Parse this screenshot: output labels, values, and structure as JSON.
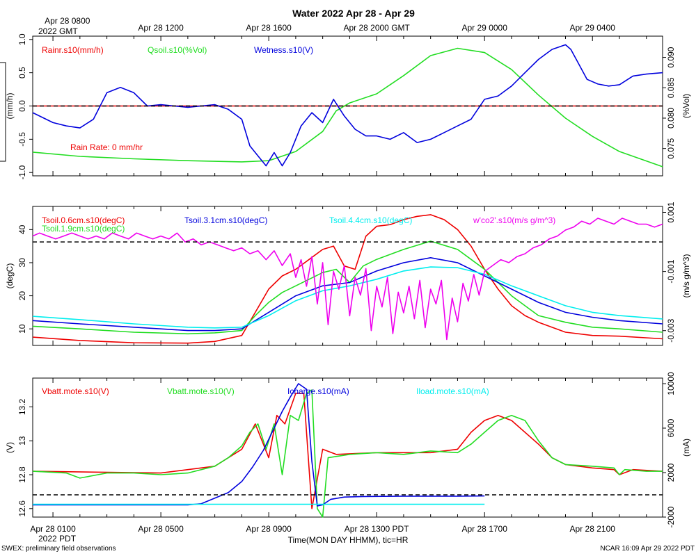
{
  "page": {
    "title": "Water 2022 Apr 28 - Apr 29",
    "top_time_labels": [
      "Apr 28 0800",
      "Apr 28 1200",
      "Apr 28 1600",
      "Apr 28 2000 GMT",
      "Apr 29 0000",
      "Apr 29 0400"
    ],
    "top_time_sublabel": "2022 GMT",
    "bottom_time_labels": [
      "Apr 28 0100",
      "Apr 28 0500",
      "Apr 28 0900",
      "Apr 28 1300 PDT",
      "Apr 28 1700",
      "Apr 28 2100"
    ],
    "bottom_time_sublabel": "2022 PDT",
    "xlabel": "Time(MON DAY HHMM), tic=HR",
    "footer_left": "SWEX: preliminary field observations",
    "footer_right": "NCAR 16:09 Apr 29 2022 PDT",
    "rain_annotation": "Rain Rate: 0 mm/hr"
  },
  "colors": {
    "red": "#ee0000",
    "green": "#22dd22",
    "blue": "#0000dd",
    "cyan": "#00eeee",
    "magenta": "#ee00ee",
    "axis": "#000000"
  },
  "chart_data": [
    {
      "type": "line",
      "title": "Water 2022 Apr 28 - Apr 29",
      "x_range_hours_pdt": [
        0.25,
        23.6
      ],
      "left_axis": {
        "label": "(mm/h)",
        "ylim": [
          -1.05,
          1.05
        ],
        "ticks": [
          -1.0,
          -0.5,
          0.0,
          0.5,
          1.0
        ]
      },
      "right_axis": {
        "label": "(%Vol)",
        "ylim": [
          0.0705,
          0.0935
        ],
        "ticks": [
          0.075,
          0.08,
          0.085,
          0.09
        ]
      },
      "legend": [
        "Rainr.s10(mm/h)",
        "Qsoil.s10(%Vol)",
        "Wetness.s10(V)"
      ],
      "reference_line": 0.0,
      "series": [
        {
          "name": "Rainr.s10(mm/h)",
          "color": "red",
          "axis": "left",
          "x": [
            0.25,
            23.6
          ],
          "y": [
            0,
            0
          ]
        },
        {
          "name": "Qsoil.s10(%Vol)",
          "color": "green",
          "axis": "right",
          "x": [
            0.25,
            2,
            4,
            6,
            8,
            9,
            10,
            11,
            11.5,
            12,
            13,
            14,
            15,
            16,
            17,
            18,
            19,
            20,
            21,
            22,
            23.6
          ],
          "y": [
            0.0744,
            0.0737,
            0.0733,
            0.073,
            0.0728,
            0.073,
            0.0745,
            0.0778,
            0.0812,
            0.0825,
            0.084,
            0.087,
            0.0903,
            0.0915,
            0.0908,
            0.088,
            0.0838,
            0.08,
            0.077,
            0.0745,
            0.072
          ]
        },
        {
          "name": "Wetness.s10(V)",
          "color": "blue",
          "axis": "left",
          "x": [
            0.25,
            1,
            1.5,
            2,
            2.5,
            3,
            3.5,
            4,
            4.5,
            5,
            5.5,
            6,
            6.5,
            7,
            7.5,
            8,
            8.3,
            8.6,
            8.9,
            9.2,
            9.5,
            9.8,
            10.2,
            10.6,
            11,
            11.4,
            11.8,
            12.2,
            12.6,
            13,
            13.5,
            14,
            14.5,
            15,
            15.5,
            16,
            16.5,
            17,
            17.5,
            18,
            18.5,
            19,
            19.5,
            20,
            20.2,
            20.4,
            20.8,
            21.2,
            21.6,
            22,
            22.5,
            23,
            23.6
          ],
          "y": [
            -0.1,
            -0.25,
            -0.3,
            -0.33,
            -0.2,
            0.2,
            0.28,
            0.2,
            0.0,
            0.02,
            0.0,
            -0.02,
            0.0,
            0.02,
            -0.05,
            -0.2,
            -0.6,
            -0.75,
            -0.9,
            -0.7,
            -0.9,
            -0.7,
            -0.3,
            -0.1,
            -0.25,
            0.1,
            -0.15,
            -0.35,
            -0.45,
            -0.45,
            -0.5,
            -0.4,
            -0.55,
            -0.5,
            -0.4,
            -0.3,
            -0.2,
            0.1,
            0.15,
            0.3,
            0.5,
            0.7,
            0.85,
            0.92,
            0.85,
            0.7,
            0.4,
            0.33,
            0.3,
            0.32,
            0.45,
            0.48,
            0.5
          ]
        }
      ]
    },
    {
      "type": "line",
      "x_range_hours_pdt": [
        0.25,
        23.6
      ],
      "left_axis": {
        "label": "(degC)",
        "ylim": [
          5,
          47
        ],
        "ticks": [
          10,
          20,
          30,
          40
        ]
      },
      "right_axis": {
        "label": "(m/s g/m^3)",
        "ylim": [
          -0.0035,
          0.0012
        ],
        "ticks": [
          -0.003,
          -0.001,
          0.001
        ]
      },
      "legend": [
        "Tsoil.0.6cm.s10(degC)",
        "Tsoil.1.9cm.s10(degC)",
        "Tsoil.3.1cm.s10(degC)",
        "Tsoil.4.4cm.s10(degC)",
        "w'co2'.s10(m/s g/m^3)"
      ],
      "reference_line_right": 0.0,
      "series": [
        {
          "name": "Tsoil.0.6cm.s10(degC)",
          "color": "red",
          "axis": "left",
          "x": [
            0.25,
            2,
            4,
            6,
            7,
            8,
            8.5,
            9,
            9.5,
            10,
            10.5,
            11,
            11.4,
            11.8,
            12.2,
            12.6,
            13,
            13.5,
            14,
            14.5,
            15,
            15.5,
            16,
            16.5,
            17,
            17.5,
            18,
            18.5,
            19,
            20,
            21,
            22,
            23.6
          ],
          "y": [
            7.5,
            6.5,
            5.8,
            5.7,
            6.2,
            8,
            15,
            22,
            26,
            28,
            31,
            34,
            35,
            29,
            28,
            38,
            41,
            41.5,
            43,
            44,
            44.5,
            43,
            40,
            35,
            28,
            22,
            17,
            14,
            12,
            9,
            8,
            7.8,
            7
          ]
        },
        {
          "name": "Tsoil.1.9cm.s10(degC)",
          "color": "green",
          "axis": "left",
          "x": [
            0.25,
            2,
            4,
            6,
            7,
            8,
            8.5,
            9,
            9.5,
            10,
            11,
            11.5,
            12,
            12.5,
            13,
            14,
            15,
            16,
            16.5,
            17,
            17.5,
            18,
            18.5,
            19,
            20,
            21,
            22,
            23.6
          ],
          "y": [
            10.8,
            10,
            9,
            8.5,
            8.8,
            9.5,
            14,
            18,
            21,
            23,
            27,
            28,
            24,
            29,
            31,
            34,
            36.5,
            34,
            31,
            28,
            24,
            20,
            17,
            14,
            12,
            10.5,
            10,
            9
          ]
        },
        {
          "name": "Tsoil.3.1cm.s10(degC)",
          "color": "blue",
          "axis": "left",
          "x": [
            0.25,
            2,
            4,
            6,
            7,
            8,
            9,
            10,
            11,
            12,
            13,
            14,
            15,
            16,
            17,
            18,
            19,
            20,
            21,
            22,
            23.6
          ],
          "y": [
            12.5,
            11.5,
            10.5,
            9.5,
            9.5,
            10,
            15,
            20,
            23,
            24,
            27.5,
            30,
            31.5,
            30,
            26,
            22,
            18,
            15,
            13.5,
            12.5,
            11.5
          ]
        },
        {
          "name": "Tsoil.4.4cm.s10(degC)",
          "color": "cyan",
          "axis": "left",
          "x": [
            0.25,
            2,
            4,
            6,
            7,
            8,
            9,
            10,
            11,
            12,
            13,
            14,
            15,
            16,
            17,
            18,
            19,
            20,
            21,
            22,
            23.6
          ],
          "y": [
            13.8,
            12.8,
            11.5,
            10.5,
            10.3,
            10.5,
            14,
            18.5,
            21.5,
            23,
            25,
            27.5,
            28.7,
            28.5,
            26.5,
            23,
            20,
            17,
            15,
            14,
            13
          ]
        },
        {
          "name": "w'co2'.s10(m/s g/m^3)",
          "color": "magenta",
          "axis": "right",
          "x": [
            0.25,
            0.5,
            0.8,
            1.1,
            1.4,
            1.7,
            2.0,
            2.3,
            2.6,
            2.9,
            3.2,
            3.5,
            3.8,
            4.1,
            4.4,
            4.7,
            5.0,
            5.3,
            5.6,
            5.9,
            6.2,
            6.5,
            6.8,
            7.1,
            7.4,
            7.7,
            8.0,
            8.3,
            8.6,
            8.9,
            9.2,
            9.5,
            9.8,
            10.0,
            10.2,
            10.4,
            10.6,
            10.8,
            11.0,
            11.2,
            11.4,
            11.6,
            11.8,
            12.0,
            12.2,
            12.4,
            12.6,
            12.8,
            13.0,
            13.2,
            13.4,
            13.6,
            13.8,
            14.0,
            14.2,
            14.4,
            14.6,
            14.8,
            15.0,
            15.2,
            15.4,
            15.6,
            15.8,
            16.0,
            16.2,
            16.4,
            16.6,
            16.8,
            17.0,
            17.3,
            17.6,
            17.9,
            18.2,
            18.5,
            18.8,
            19.1,
            19.4,
            19.7,
            20.0,
            20.3,
            20.6,
            20.9,
            21.2,
            21.5,
            21.8,
            22.1,
            22.4,
            22.7,
            23.0,
            23.3,
            23.6
          ],
          "y": [
            0.0002,
            0.0003,
            0.0002,
            0.0001,
            0.0002,
            0.0003,
            0.0002,
            0.0001,
            0.0002,
            0.0001,
            0.0003,
            0.0002,
            0.0001,
            0.0003,
            0.0002,
            0.0001,
            0.0002,
            0.0001,
            0.0003,
            0.0,
            0.0001,
            -0.0001,
            0.0,
            -0.0001,
            -0.0002,
            -0.0003,
            -0.0002,
            -0.0004,
            -0.0003,
            -0.0006,
            -0.0003,
            -0.0008,
            -0.0004,
            -0.0012,
            -0.0006,
            -0.0015,
            -0.0005,
            -0.0021,
            -0.0007,
            -0.0028,
            -0.001,
            -0.0016,
            -0.0008,
            -0.0025,
            -0.0012,
            -0.0018,
            -0.0009,
            -0.003,
            -0.0015,
            -0.0022,
            -0.0012,
            -0.0031,
            -0.0017,
            -0.0024,
            -0.0015,
            -0.0026,
            -0.0013,
            -0.0029,
            -0.0016,
            -0.0021,
            -0.0013,
            -0.0033,
            -0.0019,
            -0.0027,
            -0.0014,
            -0.002,
            -0.0011,
            -0.0018,
            -0.001,
            -0.0008,
            -0.0006,
            -0.0007,
            -0.0005,
            -0.0004,
            -0.0002,
            -0.0001,
            0.0001,
            0.0002,
            0.0004,
            0.0005,
            0.0007,
            0.0006,
            0.0008,
            0.0007,
            0.0006,
            0.0008,
            0.0007,
            0.0006,
            0.0006,
            0.0005,
            0.0006
          ]
        }
      ]
    },
    {
      "type": "line",
      "x_range_hours_pdt": [
        0.25,
        23.6
      ],
      "left_axis": {
        "label": "(V)",
        "ylim": [
          12.55,
          13.37
        ],
        "ticks": [
          12.6,
          12.8,
          13.0,
          13.2
        ]
      },
      "right_axis": {
        "label": "(mA)",
        "ylim": [
          -2000,
          10500
        ],
        "ticks": [
          -2000,
          2000,
          6000,
          10000
        ]
      },
      "legend": [
        "Vbatt.mote.s10(V)",
        "Vbatt.mote.s10(V)",
        "Icharge.s10(mA)",
        "Iload.mote.s10(mA)"
      ],
      "reference_line_right": 0,
      "series": [
        {
          "name": "Vbatt.mote.s10(V)",
          "color": "red",
          "axis": "left",
          "x": [
            0.25,
            5,
            7,
            8,
            8.5,
            9,
            9.3,
            9.6,
            10,
            10.3,
            10.6,
            11,
            11.5,
            13,
            15,
            16,
            16.5,
            17,
            17.5,
            18,
            19,
            19.5,
            20,
            21,
            21.8,
            22,
            22.5,
            23.6
          ],
          "y": [
            12.82,
            12.81,
            12.85,
            12.95,
            13.1,
            12.9,
            13.15,
            13.1,
            13.28,
            13.28,
            12.6,
            12.95,
            12.92,
            12.93,
            12.93,
            12.95,
            13.05,
            13.12,
            13.15,
            13.12,
            12.98,
            12.9,
            12.86,
            12.84,
            12.83,
            12.8,
            12.83,
            12.82
          ]
        },
        {
          "name": "Vbatt.mote.s10(V)",
          "color": "green",
          "axis": "left",
          "x": [
            0.25,
            1.5,
            2,
            3,
            4,
            5,
            6,
            7,
            7.5,
            8,
            8.3,
            8.6,
            8.9,
            9.2,
            9.5,
            9.8,
            10.1,
            10.4,
            10.6,
            10.8,
            11.0,
            11.2,
            12,
            13,
            14,
            15,
            16,
            16.5,
            17,
            17.5,
            18,
            18.5,
            19,
            19.5,
            20,
            21,
            21.8,
            22,
            22.2,
            23,
            23.6
          ],
          "y": [
            12.82,
            12.81,
            12.78,
            12.81,
            12.81,
            12.8,
            12.81,
            12.85,
            12.9,
            12.97,
            13.05,
            13.1,
            12.95,
            13.1,
            12.8,
            13.15,
            13.12,
            13.28,
            13.3,
            12.6,
            12.55,
            12.9,
            12.92,
            12.93,
            12.92,
            12.94,
            12.93,
            12.98,
            13.05,
            13.12,
            13.15,
            13.12,
            13.0,
            12.9,
            12.86,
            12.85,
            12.84,
            12.8,
            12.83,
            12.82,
            12.82
          ]
        },
        {
          "name": "Icharge.s10(mA)",
          "color": "blue",
          "axis": "right",
          "x": [
            0.25,
            3,
            6,
            6.5,
            7,
            7.5,
            8,
            8.4,
            8.8,
            9.2,
            9.5,
            9.8,
            10.1,
            10.4,
            10.6,
            10.8,
            11.0,
            11.3,
            11.8,
            12.5,
            14,
            16,
            17
          ],
          "y": [
            -900,
            -900,
            -900,
            -800,
            -300,
            200,
            1200,
            2500,
            4000,
            6000,
            7500,
            8800,
            10000,
            9500,
            3000,
            -1000,
            -900,
            -400,
            -200,
            -150,
            -120,
            -120,
            -100
          ]
        },
        {
          "name": "Iload.mote.s10(mA)",
          "color": "cyan",
          "axis": "right",
          "x": [
            0.25,
            17
          ],
          "y": [
            -850,
            -850
          ]
        }
      ]
    }
  ]
}
